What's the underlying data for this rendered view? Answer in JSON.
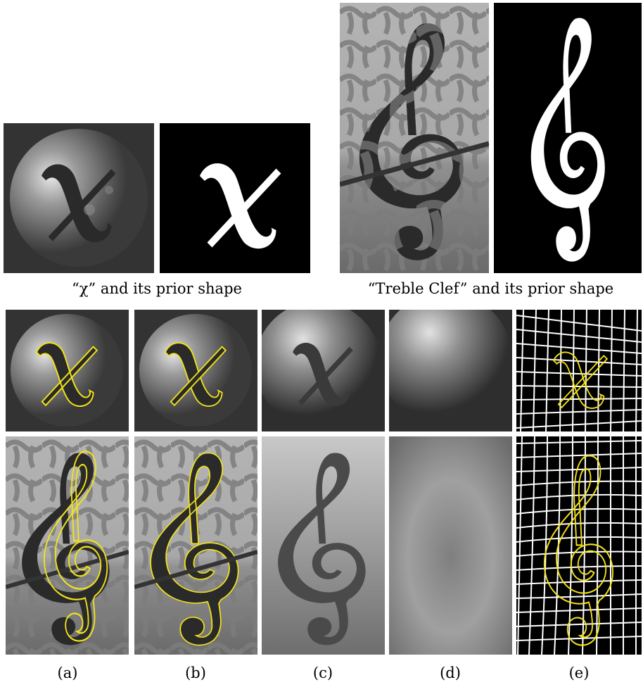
{
  "captions": {
    "chi": "“χ” and its prior shape",
    "clef": "“Treble Clef” and its prior shape"
  },
  "subfigure_labels": [
    "(a)",
    "(b)",
    "(c)",
    "(d)",
    "(e)"
  ],
  "colors": {
    "contour": "#f2e21a",
    "grid": "#ffffff",
    "background": "#000000"
  }
}
